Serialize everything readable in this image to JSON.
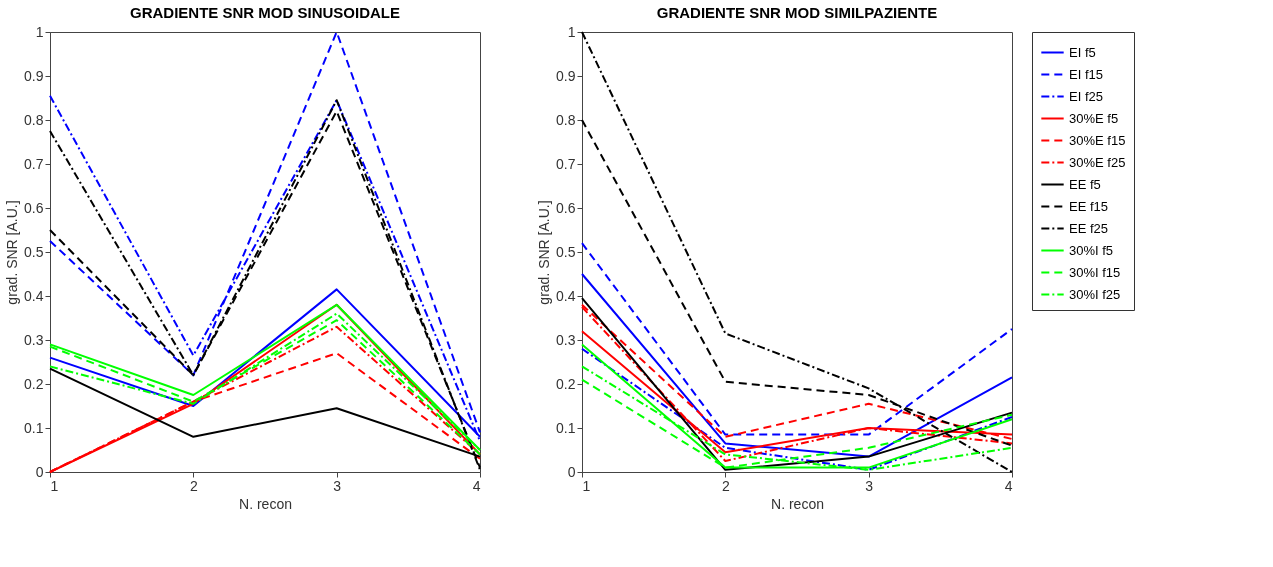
{
  "chart_data": [
    {
      "type": "line",
      "title": "GRADIENTE SNR MOD SINUSOIDALE",
      "xlabel": "N. recon",
      "ylabel": "grad. SNR [A.U.]",
      "x": [
        1,
        2,
        3,
        4
      ],
      "xlim": [
        1,
        4
      ],
      "xticks": [
        1,
        2,
        3,
        4
      ],
      "ylim": [
        0,
        1
      ],
      "yticks": [
        0,
        0.1,
        0.2,
        0.3,
        0.4,
        0.5,
        0.6,
        0.7,
        0.8,
        0.9,
        1
      ],
      "grid": false,
      "legend": "right",
      "series": [
        {
          "name": "EI f5",
          "color": "#0000ff",
          "line_style": "solid",
          "values": [
            0.26,
            0.15,
            0.415,
            0.08
          ]
        },
        {
          "name": "EI f15",
          "color": "#0000ff",
          "line_style": "dashed",
          "values": [
            0.525,
            0.22,
            1.0,
            0.09
          ]
        },
        {
          "name": "EI f25",
          "color": "#0000ff",
          "line_style": "dashdot",
          "values": [
            0.855,
            0.265,
            0.845,
            0.07
          ]
        },
        {
          "name": "30%E f5",
          "color": "#ff0000",
          "line_style": "solid",
          "values": [
            0,
            0.155,
            0.38,
            0.04
          ]
        },
        {
          "name": "30%E f15",
          "color": "#ff0000",
          "line_style": "dashed",
          "values": [
            0,
            0.16,
            0.27,
            0.03
          ]
        },
        {
          "name": "30%E f25",
          "color": "#ff0000",
          "line_style": "dashdot",
          "values": [
            0,
            0.16,
            0.33,
            0.04
          ]
        },
        {
          "name": "EE f5",
          "color": "#000000",
          "line_style": "solid",
          "values": [
            0.235,
            0.08,
            0.145,
            0.035
          ]
        },
        {
          "name": "EE f15",
          "color": "#000000",
          "line_style": "dashed",
          "values": [
            0.55,
            0.22,
            0.82,
            0.01
          ]
        },
        {
          "name": "EE f25",
          "color": "#000000",
          "line_style": "dashdot",
          "values": [
            0.775,
            0.22,
            0.845,
            0.005
          ]
        },
        {
          "name": "30%I f5",
          "color": "#00ff00",
          "line_style": "solid",
          "values": [
            0.29,
            0.175,
            0.38,
            0.05
          ]
        },
        {
          "name": "30%I f15",
          "color": "#00ff00",
          "line_style": "dashed",
          "values": [
            0.285,
            0.16,
            0.345,
            0.04
          ]
        },
        {
          "name": "30%I f25",
          "color": "#00ff00",
          "line_style": "dashdot",
          "values": [
            0.24,
            0.155,
            0.36,
            0.05
          ]
        }
      ]
    },
    {
      "type": "line",
      "title": "GRADIENTE SNR MOD SIMILPAZIENTE",
      "xlabel": "N. recon",
      "ylabel": "grad. SNR [A.U.]",
      "x": [
        1,
        2,
        3,
        4
      ],
      "xlim": [
        1,
        4
      ],
      "xticks": [
        1,
        2,
        3,
        4
      ],
      "ylim": [
        0,
        1
      ],
      "yticks": [
        0,
        0.1,
        0.2,
        0.3,
        0.4,
        0.5,
        0.6,
        0.7,
        0.8,
        0.9,
        1
      ],
      "grid": false,
      "legend": "right",
      "series": [
        {
          "name": "EI f5",
          "color": "#0000ff",
          "line_style": "solid",
          "values": [
            0.45,
            0.065,
            0.035,
            0.215
          ]
        },
        {
          "name": "EI f15",
          "color": "#0000ff",
          "line_style": "dashed",
          "values": [
            0.52,
            0.085,
            0.085,
            0.325
          ]
        },
        {
          "name": "EI f25",
          "color": "#0000ff",
          "line_style": "dashdot",
          "values": [
            0.28,
            0.055,
            0.005,
            0.125
          ]
        },
        {
          "name": "30%E f5",
          "color": "#ff0000",
          "line_style": "solid",
          "values": [
            0.32,
            0.045,
            0.1,
            0.085
          ]
        },
        {
          "name": "30%E f15",
          "color": "#ff0000",
          "line_style": "dashed",
          "values": [
            0.38,
            0.08,
            0.155,
            0.075
          ]
        },
        {
          "name": "30%E f25",
          "color": "#ff0000",
          "line_style": "dashdot",
          "values": [
            0.375,
            0.025,
            0.1,
            0.065
          ]
        },
        {
          "name": "EE f5",
          "color": "#000000",
          "line_style": "solid",
          "values": [
            0.395,
            0.005,
            0.035,
            0.135
          ]
        },
        {
          "name": "EE f15",
          "color": "#000000",
          "line_style": "dashed",
          "values": [
            0.8,
            0.205,
            0.175,
            0.06
          ]
        },
        {
          "name": "EE f25",
          "color": "#000000",
          "line_style": "dashdot",
          "values": [
            1.0,
            0.315,
            0.19,
            0.0
          ]
        },
        {
          "name": "30%I f5",
          "color": "#00ff00",
          "line_style": "solid",
          "values": [
            0.29,
            0.01,
            0.01,
            0.12
          ]
        },
        {
          "name": "30%I f15",
          "color": "#00ff00",
          "line_style": "dashed",
          "values": [
            0.21,
            0.01,
            0.055,
            0.13
          ]
        },
        {
          "name": "30%I f25",
          "color": "#00ff00",
          "line_style": "dashdot",
          "values": [
            0.24,
            0.04,
            0.005,
            0.055
          ]
        }
      ]
    }
  ]
}
